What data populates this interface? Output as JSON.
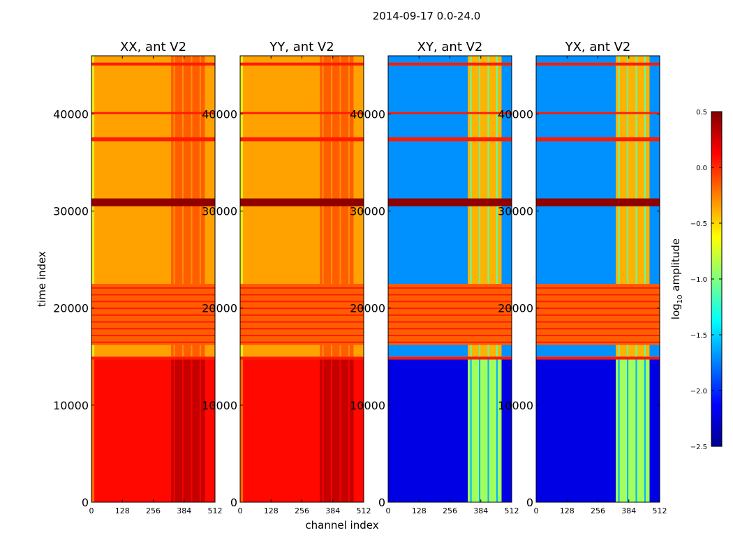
{
  "figure": {
    "title": "2014-09-17 0.0-24.0",
    "xlabel": "channel index",
    "ylabel": "time index",
    "colorbar_label_prefix": "log",
    "colorbar_label_sub": "10",
    "colorbar_label_suffix": " amplitude"
  },
  "chart_data": {
    "type": "heatmap",
    "panels": [
      {
        "title": "XX, ant V2",
        "mode": "auto"
      },
      {
        "title": "YY, ant V2",
        "mode": "auto"
      },
      {
        "title": "XY, ant V2",
        "mode": "cross"
      },
      {
        "title": "YX, ant V2",
        "mode": "cross"
      }
    ],
    "x_range": [
      0,
      512
    ],
    "x_ticks": [
      0,
      128,
      256,
      384,
      512
    ],
    "y_range": [
      0,
      46000
    ],
    "y_ticks": [
      0,
      10000,
      20000,
      30000,
      40000
    ],
    "colorbar": {
      "range": [
        -2.5,
        0.5
      ],
      "ticks": [
        0.5,
        0.0,
        -0.5,
        -1.0,
        -1.5,
        -2.0,
        -2.5
      ],
      "tick_labels": [
        "0.5",
        "0.0",
        "−0.5",
        "−1.0",
        "−1.5",
        "−2.0",
        "−2.5"
      ],
      "colormap": "jet"
    },
    "bright_region_channel_range": [
      330,
      470
    ],
    "flagged_time_bands": [
      {
        "start": 14700,
        "end": 15000,
        "value": 0.05
      },
      {
        "start": 16200,
        "end": 22500,
        "value": -0.15,
        "striped": true
      },
      {
        "start": 30500,
        "end": 31300,
        "value": 0.45
      },
      {
        "start": 37200,
        "end": 37600,
        "value": 0.05
      },
      {
        "start": 40000,
        "end": 40200,
        "value": 0.05
      },
      {
        "start": 45000,
        "end": 45300,
        "value": 0.05
      }
    ],
    "data_regions": [
      {
        "start": 0,
        "end": 14700,
        "auto_level": 0.1,
        "cross_level": -2.2
      },
      {
        "start": 15000,
        "end": 46000,
        "auto_level": -0.35,
        "cross_level": -1.7
      }
    ]
  }
}
